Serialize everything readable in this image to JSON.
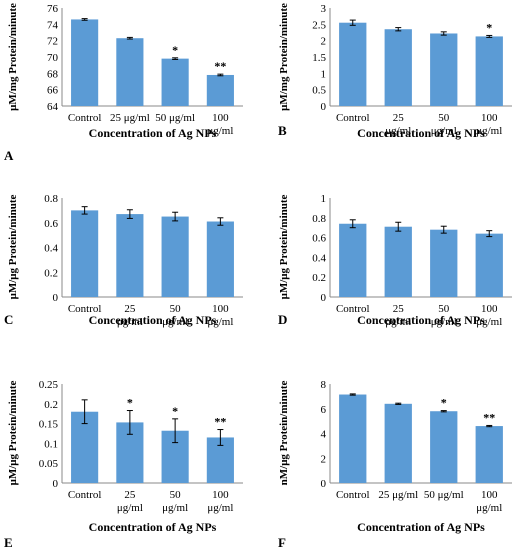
{
  "chart_data": [
    {
      "panel": "A",
      "type": "bar",
      "categories": [
        "Control",
        "25 μg/ml",
        "50 μg/ml",
        "100 μg/ml"
      ],
      "values": [
        74.6,
        72.3,
        69.8,
        67.8
      ],
      "errors": [
        0.1,
        0.1,
        0.1,
        0.1
      ],
      "significance": [
        "",
        "",
        "*",
        "**"
      ],
      "ylabel": "μM/mg Protein/minute",
      "xlabel": "Concentration of Ag NPs",
      "ylim": [
        64,
        76
      ],
      "yticks": [
        "64",
        "66",
        "68",
        "70",
        "72",
        "74",
        "76"
      ]
    },
    {
      "panel": "B",
      "type": "bar",
      "categories": [
        "Control",
        "25 μg/ml",
        "50 μg/ml",
        "100 μg/ml"
      ],
      "values": [
        2.55,
        2.35,
        2.22,
        2.13
      ],
      "errors": [
        0.08,
        0.05,
        0.05,
        0.03
      ],
      "significance": [
        "",
        "",
        "",
        "*"
      ],
      "ylabel": "μM/mg Protein/minute",
      "xlabel": "Concentration of Ag NPs",
      "ylim": [
        0,
        3
      ],
      "yticks": [
        "0",
        "0.5",
        "1",
        "1.5",
        "2",
        "2.5",
        "3"
      ]
    },
    {
      "panel": "C",
      "type": "bar",
      "categories": [
        "Control",
        "25 μg/ml",
        "50 μg/ml",
        "100 μg/ml"
      ],
      "values": [
        0.7,
        0.67,
        0.65,
        0.61
      ],
      "errors": [
        0.03,
        0.035,
        0.035,
        0.03
      ],
      "significance": [
        "",
        "",
        "",
        ""
      ],
      "ylabel": "μM/μg Protein/minute",
      "xlabel": "Concentration of Ag NPs",
      "ylim": [
        0,
        0.8
      ],
      "yticks": [
        "0",
        "0.2",
        "0.4",
        "0.6",
        "0.8"
      ]
    },
    {
      "panel": "D",
      "type": "bar",
      "categories": [
        "Control",
        "25 μg/ml",
        "50 μg/ml",
        "100 μg/ml"
      ],
      "values": [
        0.74,
        0.71,
        0.68,
        0.64
      ],
      "errors": [
        0.04,
        0.045,
        0.035,
        0.03
      ],
      "significance": [
        "",
        "",
        "",
        ""
      ],
      "ylabel": "μM/μg Protein/minute",
      "xlabel": "Concentration of Ag NPs",
      "ylim": [
        0,
        1
      ],
      "yticks": [
        "0",
        "0.2",
        "0.4",
        "0.6",
        "0.8",
        "1"
      ]
    },
    {
      "panel": "E",
      "type": "bar",
      "categories": [
        "Control",
        "25 μg/ml",
        "50 μg/ml",
        "100 μg/ml"
      ],
      "values": [
        0.18,
        0.153,
        0.132,
        0.115
      ],
      "errors": [
        0.03,
        0.03,
        0.03,
        0.02
      ],
      "significance": [
        "",
        "*",
        "*",
        "**"
      ],
      "ylabel": "μM/μg Protein/minute",
      "xlabel": "Concentration of Ag NPs",
      "ylim": [
        0,
        0.25
      ],
      "yticks": [
        "0",
        "0.05",
        "0.1",
        "0.15",
        "0.2",
        "0.25"
      ]
    },
    {
      "panel": "F",
      "type": "bar",
      "categories": [
        "Control",
        "25 μg/ml",
        "50 μg/ml",
        "100 μg/ml"
      ],
      "values": [
        7.15,
        6.4,
        5.8,
        4.6
      ],
      "errors": [
        0.05,
        0.05,
        0.05,
        0.05
      ],
      "significance": [
        "",
        "",
        "*",
        "**"
      ],
      "ylabel": "nM/μg Protein/minute",
      "xlabel": "Concentration of Ag NPs",
      "ylim": [
        0,
        8
      ],
      "yticks": [
        "0",
        "2",
        "4",
        "6",
        "8"
      ]
    }
  ],
  "colors": {
    "bar": "#5b9bd5",
    "axis": "#888888"
  }
}
